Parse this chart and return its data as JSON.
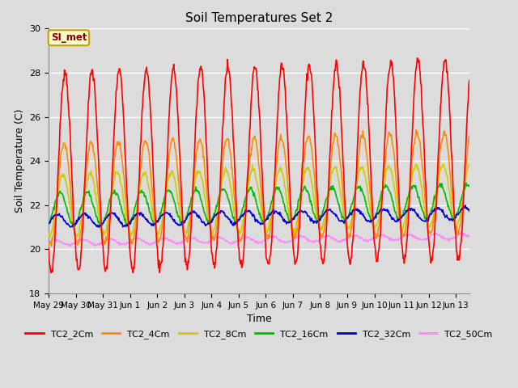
{
  "title": "Soil Temperatures Set 2",
  "xlabel": "Time",
  "ylabel": "Soil Temperature (C)",
  "ylim": [
    18,
    30
  ],
  "yticks": [
    18,
    20,
    22,
    24,
    26,
    28,
    30
  ],
  "annotation_text": "SI_met",
  "annotation_color": "#8B0000",
  "annotation_bg": "#FFFFCC",
  "annotation_border": "#C8A000",
  "series_colors": {
    "TC2_2Cm": "#FF0000",
    "TC2_4Cm": "#FF8C00",
    "TC2_8Cm": "#CCCC00",
    "TC2_16Cm": "#00BB00",
    "TC2_32Cm": "#0000CC",
    "TC2_50Cm": "#FF88FF"
  },
  "line_width": 1.2,
  "bg_color": "#DCDCDC",
  "grid_color": "#FFFFFF",
  "xtick_labels": [
    "May 29",
    "May 30",
    "May 31",
    "Jun 1",
    "Jun 2",
    "Jun 3",
    "Jun 4",
    "Jun 5",
    "Jun 6",
    "Jun 7",
    "Jun 8",
    "Jun 9",
    "Jun 10",
    "Jun 11",
    "Jun 12",
    "Jun 13"
  ],
  "n_days": 15.5,
  "samples_per_day": 48
}
